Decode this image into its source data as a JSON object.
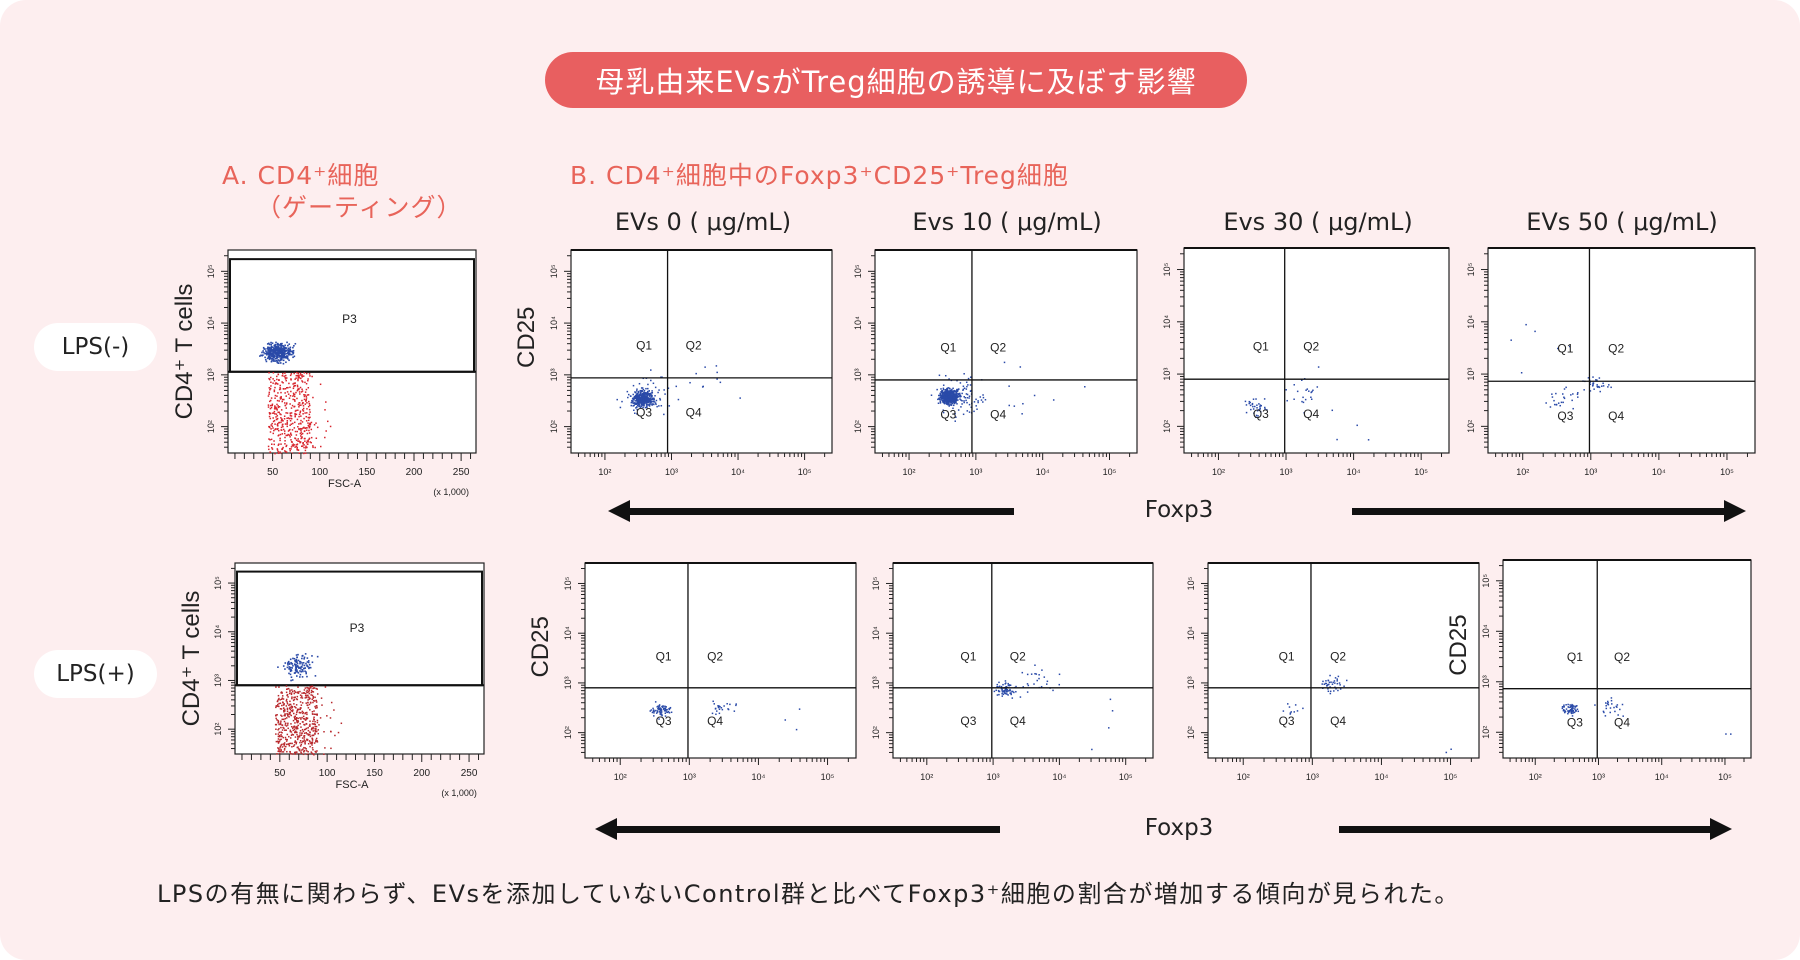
{
  "title": "母乳由来EVsがTreg細胞の誘導に及ぼす影響",
  "section_a": {
    "line1": "A. CD4⁺細胞",
    "line2": "（ゲーティング）"
  },
  "section_b": "B. CD4⁺細胞中のFoxp3⁺CD25⁺Treg細胞",
  "columns": [
    "EVs 0 ( μg/mL)",
    "Evs 10 ( μg/mL)",
    "Evs  30 ( μg/mL)",
    "EVs 50 ( μg/mL)"
  ],
  "rows": [
    {
      "label": "LPS(-)"
    },
    {
      "label": "LPS(+)"
    }
  ],
  "gating": {
    "y_axis_title": "CD4⁺ T cells",
    "x_axis_title": "FSC-A",
    "x_unit": "(x 1,000)",
    "x_ticks": [
      "50",
      "100",
      "150",
      "200",
      "250"
    ],
    "y_ticks": [
      "10²",
      "10³",
      "10⁴",
      "10⁵"
    ],
    "gate_label": "P3",
    "gate_colors": {
      "in_gate": "#2a4aa8",
      "out_gate": "#d8242c"
    }
  },
  "quadrant_plot": {
    "y_axis_title": "CD25",
    "x_axis_title": "Foxp3",
    "x_ticks": [
      "10²",
      "10³",
      "10⁴",
      "10⁵"
    ],
    "y_ticks": [
      "10²",
      "10³",
      "10⁴",
      "10⁵"
    ],
    "quadrants": [
      "Q1",
      "Q2",
      "Q3",
      "Q4"
    ],
    "dot_color": "#2a4aa8"
  },
  "caption": "LPSの有無に関わらず、EVsを添加していないControl群と比べてFoxp3⁺細胞の割合が増加する傾向が見られた。",
  "colors": {
    "background": "#fdeeef",
    "accent": "#e85f60",
    "heading": "#e8645a"
  }
}
